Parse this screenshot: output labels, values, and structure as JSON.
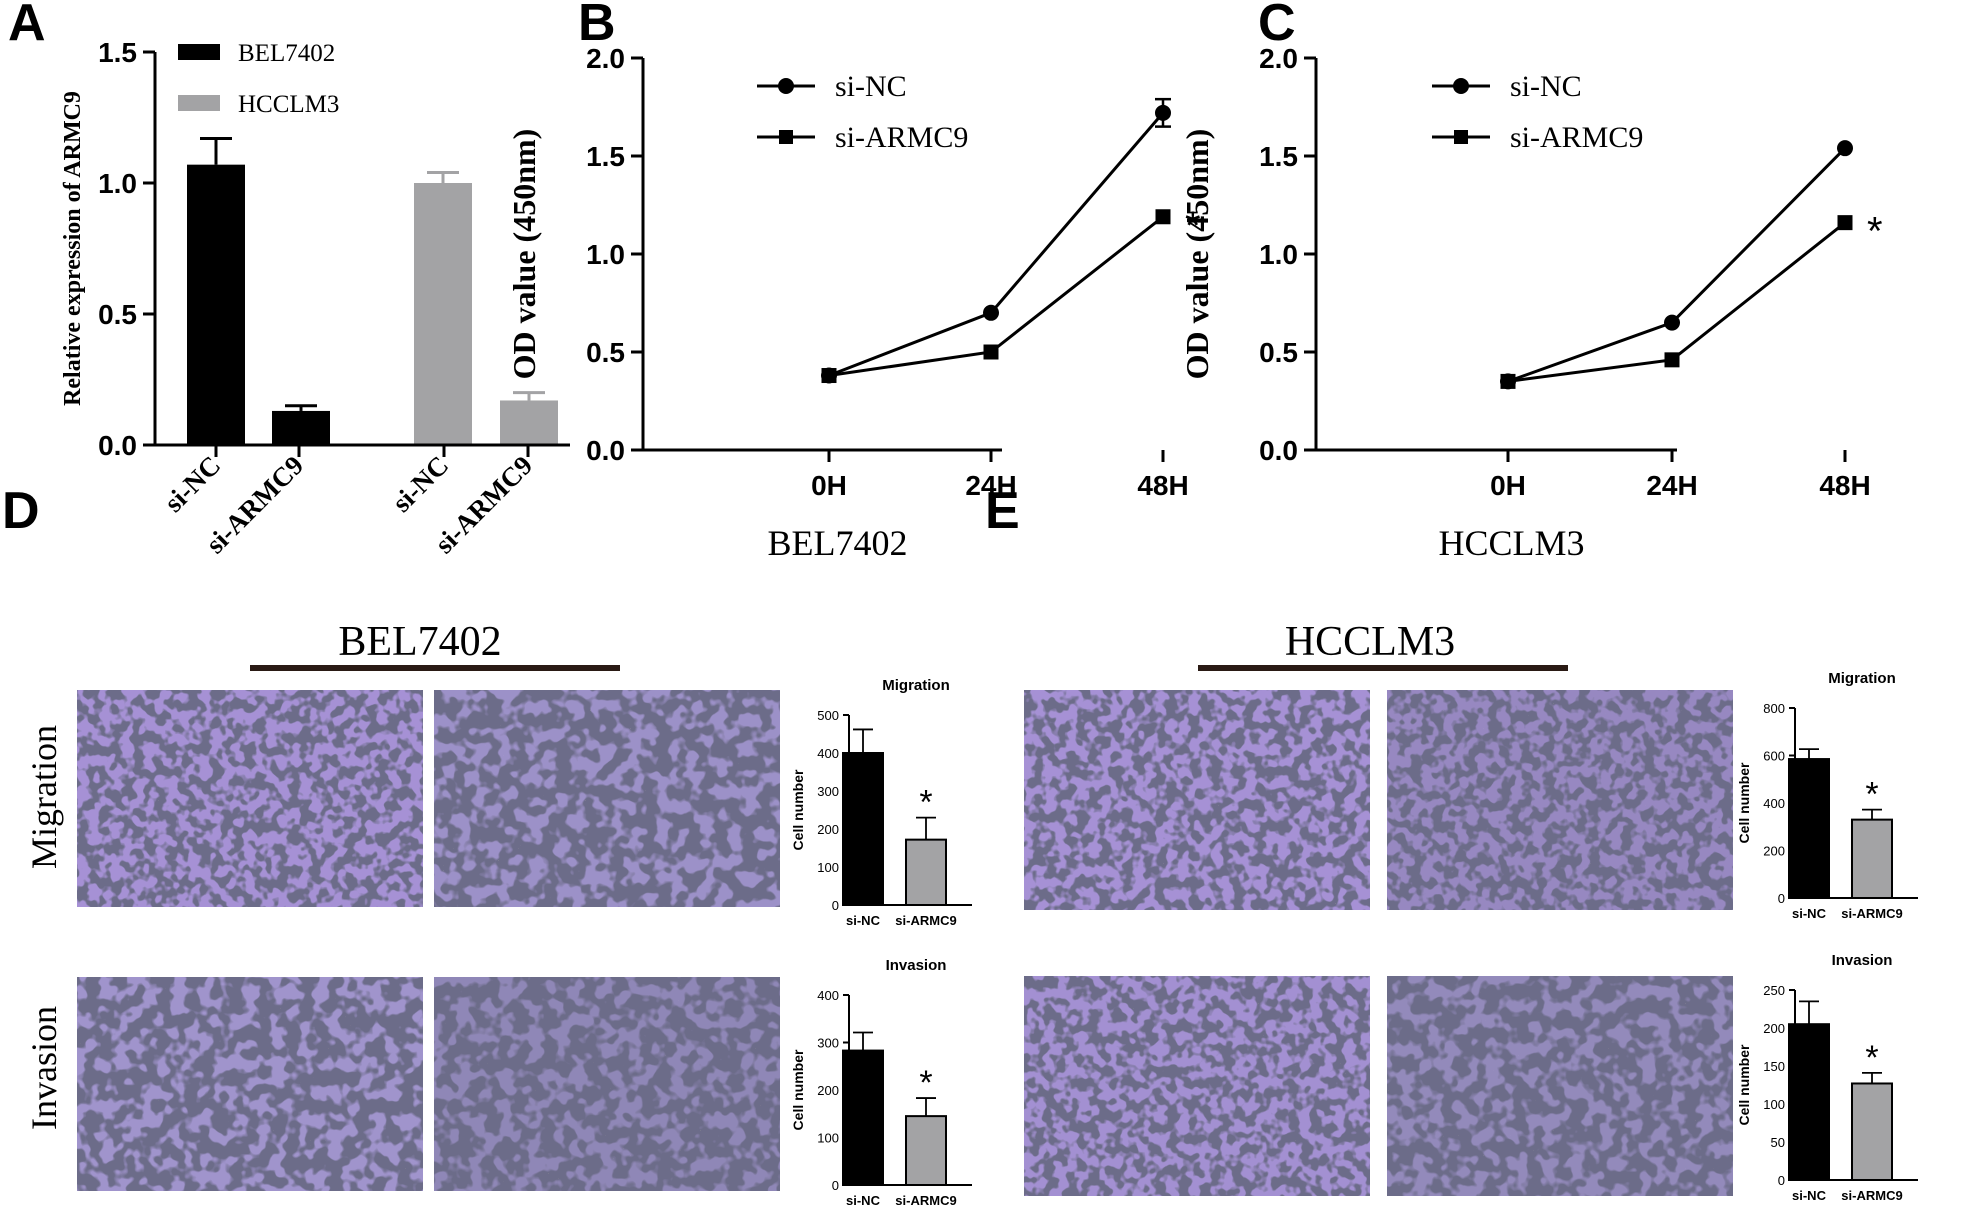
{
  "panel_labels": {
    "a": "A",
    "b": "B",
    "c": "C",
    "d": "D",
    "e": "E"
  },
  "colors": {
    "black": "#000000",
    "gray": "#a3a3a5",
    "membrane": "#c8c3b4",
    "stain": "#6a4fb0"
  },
  "photo_panels": {
    "d": {
      "cell_line": "BEL7402",
      "rows": [
        "Migration",
        "Invasion"
      ]
    },
    "e": {
      "cell_line": "HCCLM3"
    }
  },
  "chart_data": [
    {
      "id": "a",
      "type": "bar",
      "title": "",
      "ylabel": "Relative expression of ARMC9",
      "ylim": [
        0,
        1.5
      ],
      "yticks": [
        "0.0",
        "0.5",
        "1.0",
        "1.5"
      ],
      "ytick_values": [
        0,
        0.5,
        1.0,
        1.5
      ],
      "legend": [
        "BEL7402",
        "HCCLM3"
      ],
      "groups": [
        {
          "name": "BEL7402",
          "categories": [
            "si-NC",
            "si-ARMC9"
          ],
          "values": [
            1.07,
            0.13
          ],
          "errors": [
            0.1,
            0.02
          ]
        },
        {
          "name": "HCCLM3",
          "categories": [
            "si-NC",
            "si-ARMC9"
          ],
          "values": [
            1.0,
            0.17
          ],
          "errors": [
            0.04,
            0.03
          ]
        }
      ]
    },
    {
      "id": "b",
      "type": "line",
      "xlabel": "BEL7402",
      "ylabel": "OD value (450nm)",
      "categories": [
        "0H",
        "24H",
        "48H"
      ],
      "ylim": [
        0,
        2.0
      ],
      "yticks": [
        "0.0",
        "0.5",
        "1.0",
        "1.5",
        "2.0"
      ],
      "ytick_values": [
        0,
        0.5,
        1.0,
        1.5,
        2.0
      ],
      "series": [
        {
          "name": "si-NC",
          "marker": "circle",
          "values": [
            0.38,
            0.7,
            1.72
          ],
          "errors": [
            0.01,
            0.01,
            0.07
          ]
        },
        {
          "name": "si-ARMC9",
          "marker": "square",
          "values": [
            0.38,
            0.5,
            1.19
          ],
          "errors": [
            0.01,
            0.01,
            0.01
          ]
        }
      ],
      "annotation": "*"
    },
    {
      "id": "c",
      "type": "line",
      "xlabel": "HCCLM3",
      "ylabel": "OD value (450nm)",
      "categories": [
        "0H",
        "24H",
        "48H"
      ],
      "ylim": [
        0,
        2.0
      ],
      "yticks": [
        "0.0",
        "0.5",
        "1.0",
        "1.5",
        "2.0"
      ],
      "ytick_values": [
        0,
        0.5,
        1.0,
        1.5,
        2.0
      ],
      "series": [
        {
          "name": "si-NC",
          "marker": "circle",
          "values": [
            0.35,
            0.65,
            1.54
          ],
          "errors": [
            0.01,
            0.01,
            0.02
          ]
        },
        {
          "name": "si-ARMC9",
          "marker": "square",
          "values": [
            0.35,
            0.46,
            1.16
          ],
          "errors": [
            0.01,
            0.01,
            0.01
          ]
        }
      ],
      "annotation": "*"
    },
    {
      "id": "d-migration",
      "type": "bar",
      "title": "Migration",
      "ylabel": "Cell number",
      "categories": [
        "si-NC",
        "si-ARMC9"
      ],
      "values": [
        400,
        172
      ],
      "errors": [
        62,
        58
      ],
      "ylim": [
        0,
        500
      ],
      "yticks": [
        "0",
        "100",
        "200",
        "300",
        "400",
        "500"
      ],
      "ytick_values": [
        0,
        100,
        200,
        300,
        400,
        500
      ],
      "annotation": "*"
    },
    {
      "id": "d-invasion",
      "type": "bar",
      "title": "Invasion",
      "ylabel": "Cell number",
      "categories": [
        "si-NC",
        "si-ARMC9"
      ],
      "values": [
        283,
        145
      ],
      "errors": [
        38,
        38
      ],
      "ylim": [
        0,
        400
      ],
      "yticks": [
        "0",
        "100",
        "200",
        "300",
        "400"
      ],
      "ytick_values": [
        0,
        100,
        200,
        300,
        400
      ],
      "annotation": "*"
    },
    {
      "id": "e-migration",
      "type": "bar",
      "title": "Migration",
      "ylabel": "Cell number",
      "categories": [
        "si-NC",
        "si-ARMC9"
      ],
      "values": [
        585,
        330
      ],
      "errors": [
        42,
        42
      ],
      "ylim": [
        0,
        800
      ],
      "yticks": [
        "0",
        "200",
        "400",
        "600",
        "800"
      ],
      "ytick_values": [
        0,
        200,
        400,
        600,
        800
      ],
      "annotation": "*"
    },
    {
      "id": "e-invasion",
      "type": "bar",
      "title": "Invasion",
      "ylabel": "Cell number",
      "categories": [
        "si-NC",
        "si-ARMC9"
      ],
      "values": [
        205,
        127
      ],
      "errors": [
        30,
        14
      ],
      "ylim": [
        0,
        250
      ],
      "yticks": [
        "0",
        "50",
        "100",
        "150",
        "200",
        "250"
      ],
      "ytick_values": [
        0,
        50,
        100,
        150,
        200,
        250
      ],
      "annotation": "*"
    }
  ]
}
